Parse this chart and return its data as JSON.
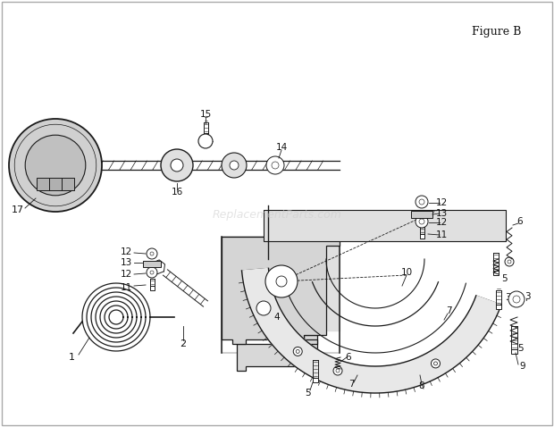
{
  "figure_label": "Figure B",
  "bg_color": "#ffffff",
  "border_color": "#cccccc",
  "line_color": "#1a1a1a",
  "text_color": "#111111",
  "watermark_text": "ReplacementParts.com",
  "watermark_color": "#bbbbbb",
  "fig_width": 6.2,
  "fig_height": 4.78,
  "dpi": 100,
  "img_url": ""
}
